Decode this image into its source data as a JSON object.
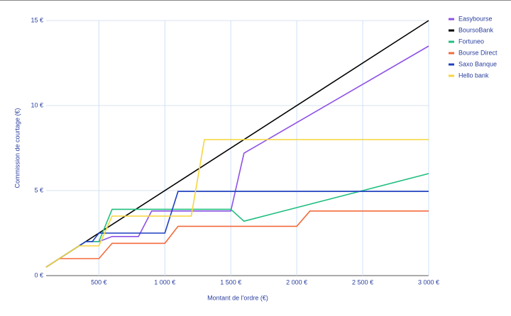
{
  "chart_data": {
    "type": "line",
    "x_label": "Montant de l'ordre (€)",
    "y_label": "Commission de courtage (€)",
    "xlim": [
      100,
      3000
    ],
    "xticks": [
      {
        "value": 500,
        "label": "500 €"
      },
      {
        "value": 1000,
        "label": "1 000 €"
      },
      {
        "value": 1500,
        "label": "1 500 €"
      },
      {
        "value": 2000,
        "label": "2 000 €"
      },
      {
        "value": 2500,
        "label": "2 500 €"
      },
      {
        "value": 3000,
        "label": "3 000 €"
      }
    ],
    "ylim": [
      0,
      15
    ],
    "yticks": [
      {
        "value": 0,
        "label": "0 €"
      },
      {
        "value": 5,
        "label": "5 €"
      },
      {
        "value": 10,
        "label": "10 €"
      },
      {
        "value": 15,
        "label": "15 €"
      }
    ],
    "grid": true,
    "legend": "right",
    "series": [
      {
        "name": "Easybourse",
        "color": "#8e52e6",
        "x": [
          100,
          400,
          500,
          600,
          800,
          900,
          1500,
          1600,
          3000
        ],
        "values": [
          0.5,
          2,
          2,
          2.3,
          2.3,
          3.8,
          3.8,
          7.2,
          13.5
        ]
      },
      {
        "name": "BoursoBank",
        "color": "#000000",
        "x": [
          100,
          3000
        ],
        "values": [
          0.5,
          15
        ]
      },
      {
        "name": "Fortuneo",
        "color": "#1fbf7f",
        "x": [
          100,
          400,
          500,
          600,
          1500,
          1600,
          3000
        ],
        "values": [
          0.5,
          2,
          2,
          3.9,
          3.9,
          3.2,
          6
        ]
      },
      {
        "name": "Bourse Direct",
        "color": "#f36a3c",
        "x": [
          100,
          200,
          500,
          600,
          1000,
          1100,
          2000,
          2100,
          3000
        ],
        "values": [
          0.5,
          1,
          1,
          1.9,
          1.9,
          2.9,
          2.9,
          3.8,
          3.8
        ]
      },
      {
        "name": "Saxo Banque",
        "color": "#1f3fbf",
        "x": [
          100,
          400,
          450,
          500,
          1000,
          1100,
          3000
        ],
        "values": [
          0.5,
          2,
          2,
          2.5,
          2.5,
          4.95,
          4.95
        ]
      },
      {
        "name": "Hello bank",
        "color": "#f5d63a",
        "x": [
          100,
          350,
          500,
          600,
          1200,
          1300,
          3000
        ],
        "values": [
          0.5,
          1.75,
          1.75,
          3.5,
          3.5,
          8,
          8
        ]
      }
    ]
  }
}
